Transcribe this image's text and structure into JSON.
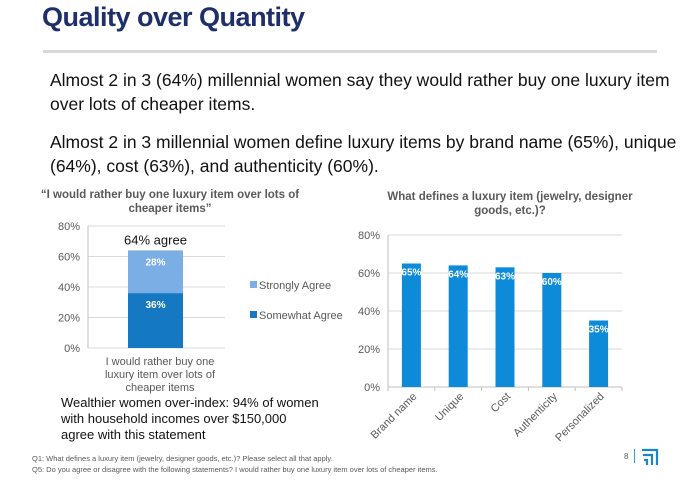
{
  "header": {
    "title": "Quality over Quantity"
  },
  "body": {
    "paragraph1": "Almost 2 in 3 (64%) millennial women say they would rather buy one luxury item over lots of cheaper items.",
    "paragraph2": "Almost 2 in 3 millennial women define luxury items by brand name (65%), unique (64%), cost (63%), and authenticity (60%).",
    "wealth_note": "Wealthier women over-index: 94% of women with household incomes over $150,000 agree with this statement"
  },
  "footer": {
    "q1": "Q1: What defines a luxury item (jewelry, designer goods, etc.)? Please select all that apply.",
    "q5": "Q5: Do you agree or disagree with the following statements? I would rather buy one luxury item over lots of cheaper items.",
    "page_number": "8",
    "logo_icon": "stacked-corner-logo-icon"
  },
  "colors": {
    "strongly": "#7aaee4",
    "somewhat": "#1578c2",
    "bar": "#0d8bd9",
    "title": "#1f2f6b"
  },
  "chart_data": [
    {
      "type": "bar",
      "stacked": true,
      "title": "“I would rather buy one luxury item over lots of cheaper items”",
      "categories": [
        "I would rather buy one luxury item over lots of cheaper items"
      ],
      "series": [
        {
          "name": "Somewhat Agree",
          "values": [
            36
          ],
          "label": "36%"
        },
        {
          "name": "Strongly Agree",
          "values": [
            28
          ],
          "label": "28%"
        }
      ],
      "annotation": "64% agree",
      "ylim": [
        0,
        80
      ],
      "yticks": [
        "0%",
        "20%",
        "40%",
        "60%",
        "80%"
      ],
      "grid": true,
      "legend": "right"
    },
    {
      "type": "bar",
      "title": "What defines a luxury item (jewelry, designer goods, etc.)?",
      "categories": [
        "Brand name",
        "Unique",
        "Cost",
        "Authenticity",
        "Personalized"
      ],
      "values": [
        65,
        64,
        63,
        60,
        35
      ],
      "labels": [
        "65%",
        "64%",
        "63%",
        "60%",
        "35%"
      ],
      "ylim": [
        0,
        80
      ],
      "yticks": [
        "0%",
        "20%",
        "40%",
        "60%",
        "80%"
      ],
      "grid": true
    }
  ]
}
